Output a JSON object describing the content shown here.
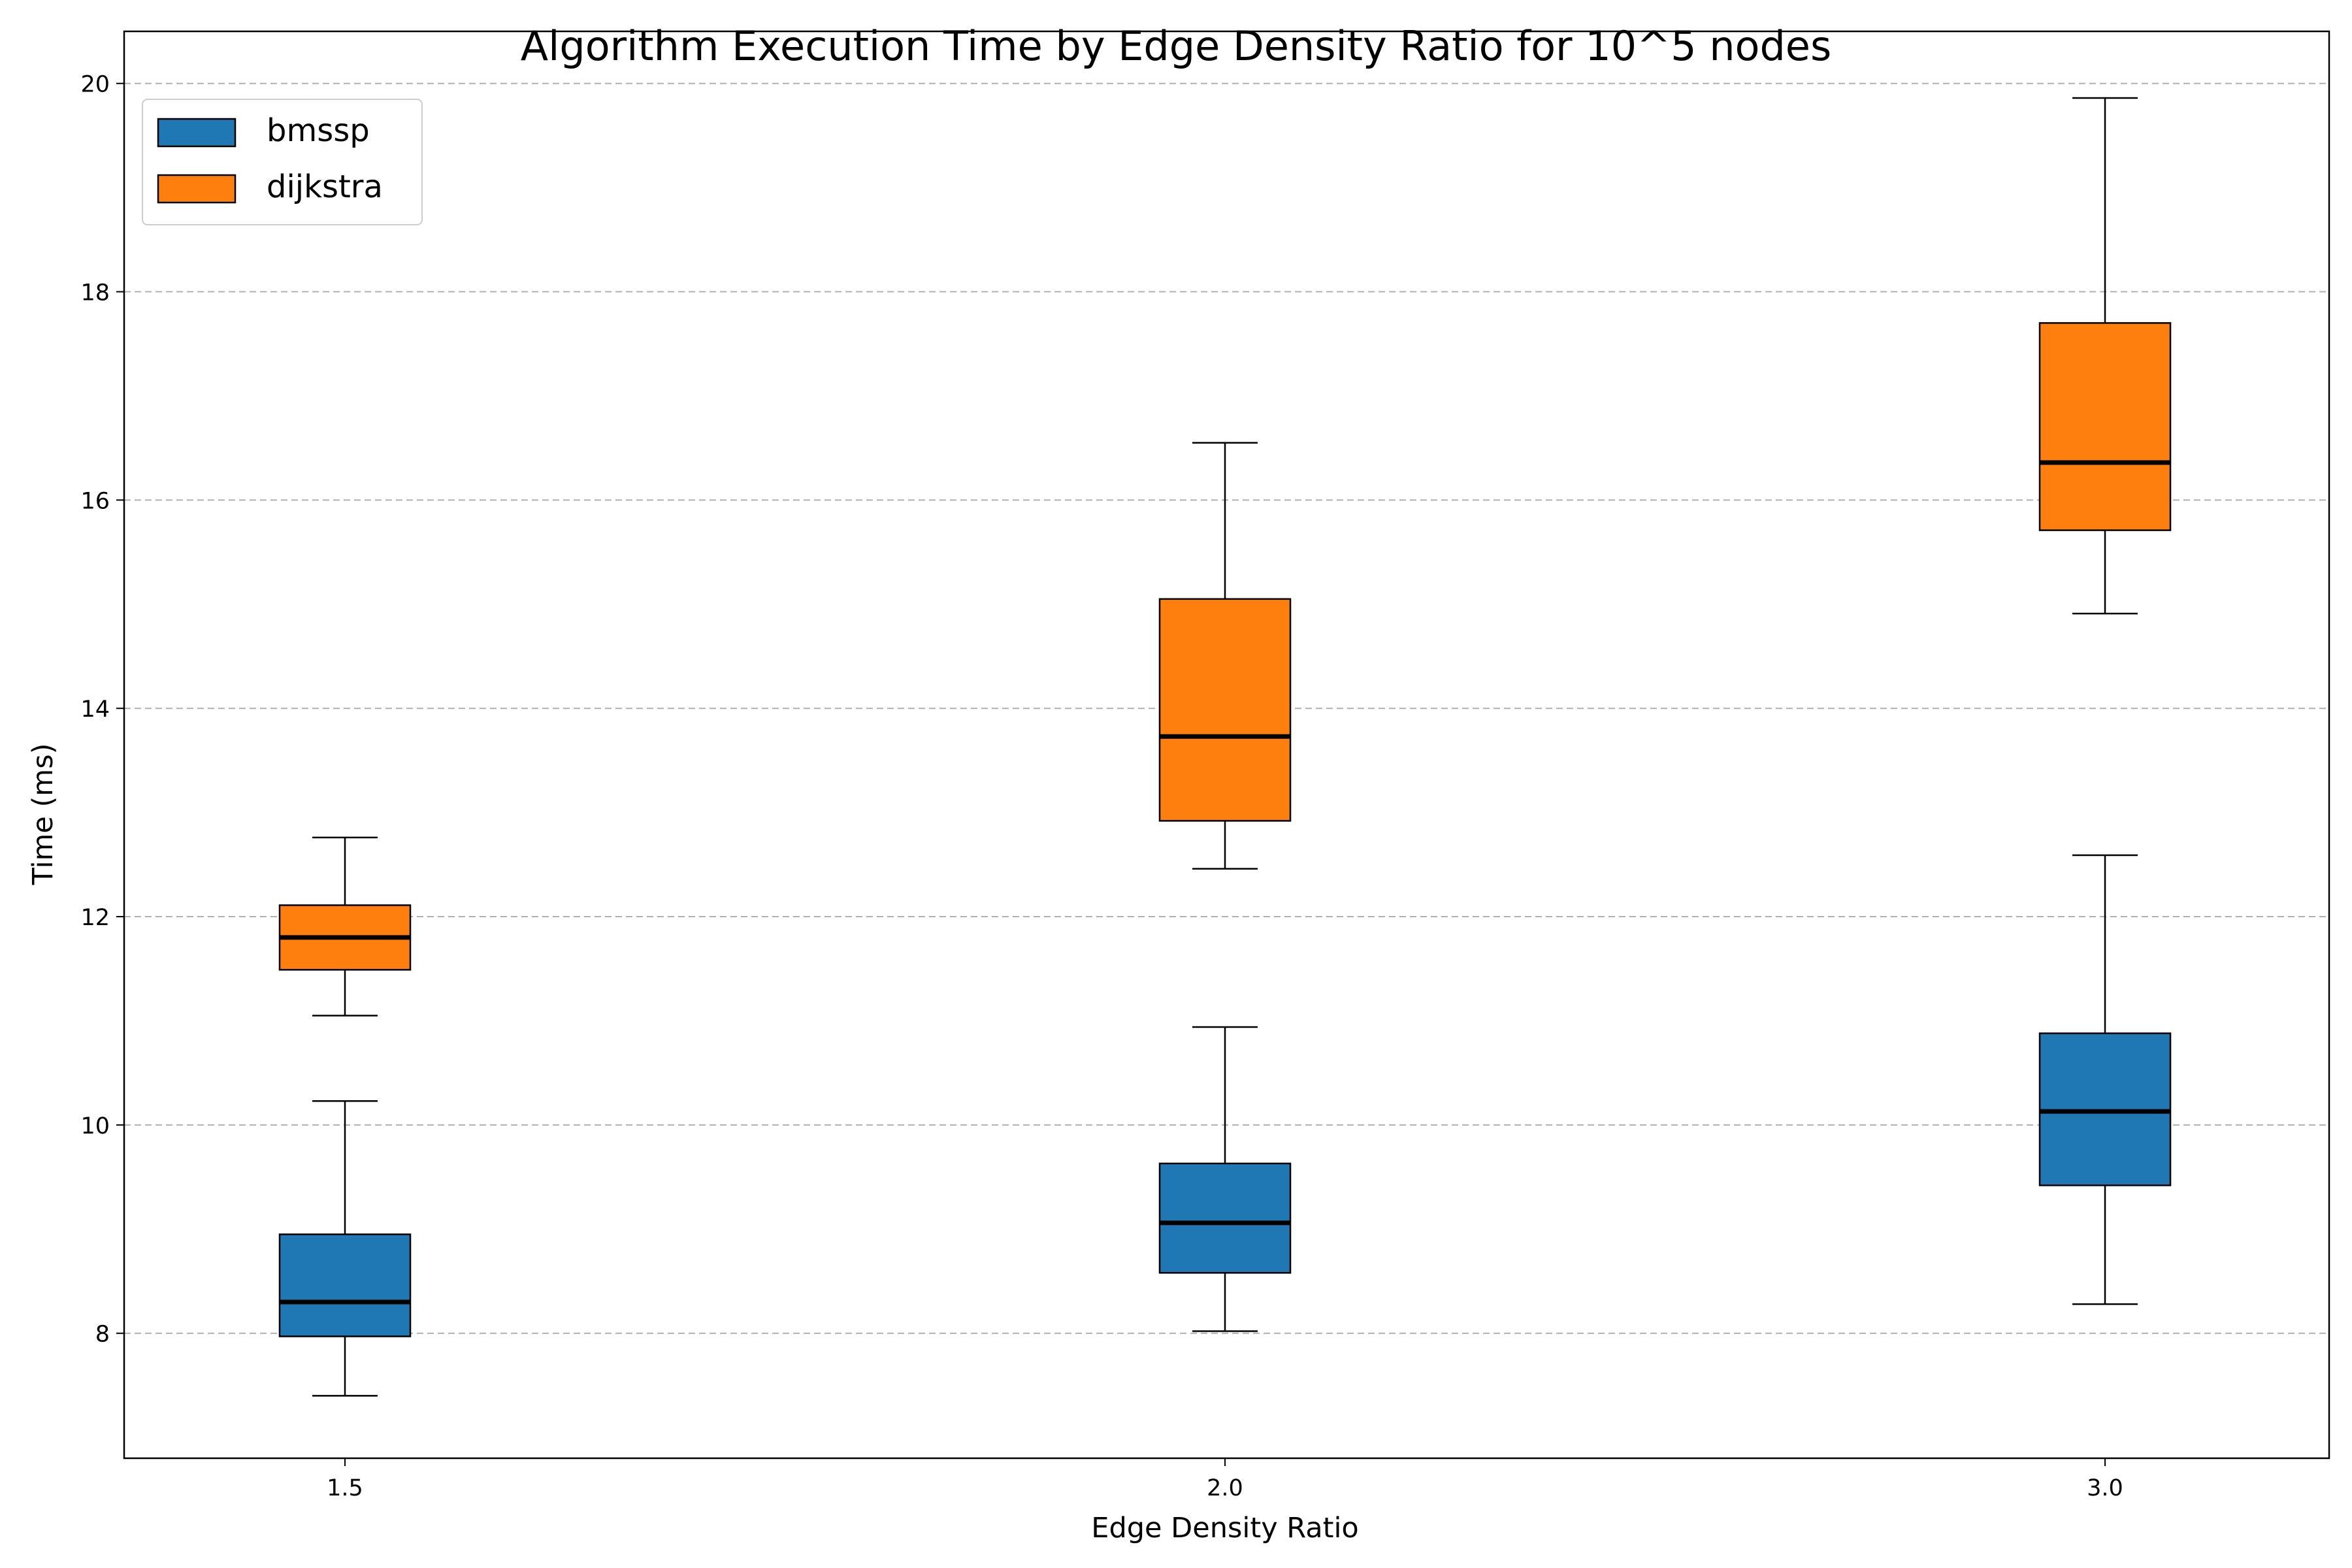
{
  "chart_data": {
    "type": "boxplot",
    "title": "Algorithm Execution Time by Edge Density Ratio for 10^5 nodes",
    "xlabel": "Edge Density Ratio",
    "ylabel": "Time (ms)",
    "categories": [
      "1.5",
      "2.0",
      "3.0"
    ],
    "ylim": [
      6.8,
      20.5
    ],
    "yticks": [
      8,
      10,
      12,
      14,
      16,
      18,
      20
    ],
    "grid": "y-dashed",
    "legend_position": "top-left",
    "series": [
      {
        "name": "bmssp",
        "color": "#1f77b4",
        "boxes": [
          {
            "whisker_low": 7.4,
            "q1": 7.97,
            "median": 8.3,
            "q3": 8.95,
            "whisker_high": 10.23
          },
          {
            "whisker_low": 8.02,
            "q1": 8.58,
            "median": 9.06,
            "q3": 9.63,
            "whisker_high": 10.94
          },
          {
            "whisker_low": 8.28,
            "q1": 9.42,
            "median": 10.13,
            "q3": 10.88,
            "whisker_high": 12.59
          }
        ]
      },
      {
        "name": "dijkstra",
        "color": "#ff7f0e",
        "boxes": [
          {
            "whisker_low": 11.05,
            "q1": 11.49,
            "median": 11.8,
            "q3": 12.11,
            "whisker_high": 12.76
          },
          {
            "whisker_low": 12.46,
            "q1": 12.92,
            "median": 13.73,
            "q3": 15.05,
            "whisker_high": 16.55
          },
          {
            "whisker_low": 14.91,
            "q1": 15.71,
            "median": 16.36,
            "q3": 17.7,
            "whisker_high": 19.86
          }
        ]
      }
    ]
  }
}
